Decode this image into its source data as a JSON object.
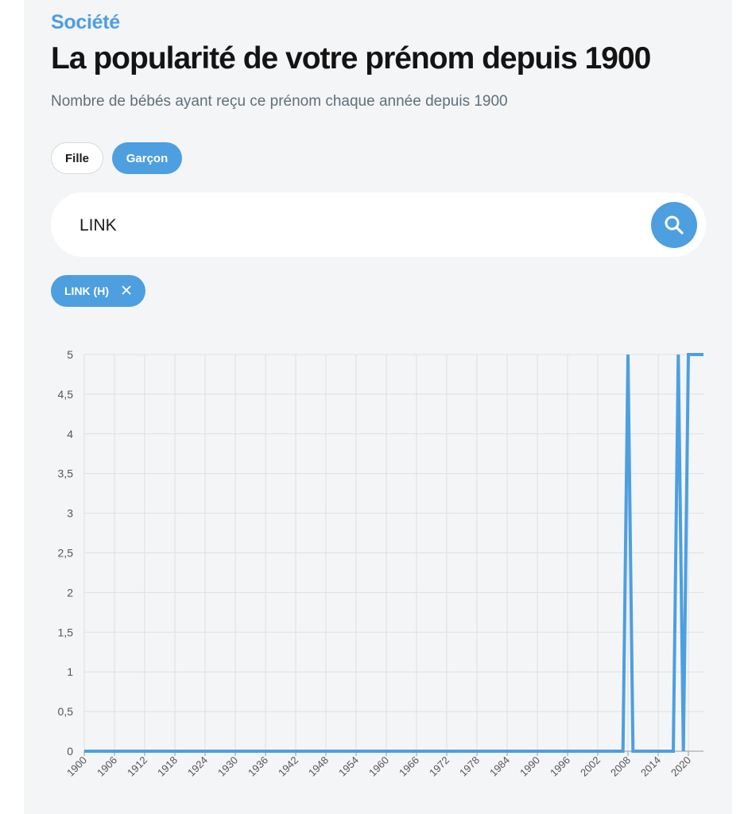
{
  "header": {
    "kicker": "Société",
    "title": "La popularité de votre prénom depuis 1900",
    "subtitle": "Nombre de bébés ayant reçu ce prénom chaque année depuis 1900"
  },
  "gender_toggle": {
    "options": [
      "Fille",
      "Garçon"
    ],
    "selected": "Garçon"
  },
  "search": {
    "value": "LINK",
    "button_icon": "search-icon"
  },
  "selected_names": [
    {
      "label": "LINK (H)",
      "remove_icon": "close-icon"
    }
  ],
  "colors": {
    "accent": "#4d9fe0",
    "grid": "#dedfe1",
    "axis_text": "#555555"
  },
  "chart_data": {
    "type": "line",
    "series": [
      {
        "x": [
          1900,
          2007,
          2008,
          2009,
          2017,
          2018,
          2019,
          2020,
          2023
        ],
        "values": [
          0,
          0,
          5,
          0,
          0,
          5,
          0,
          5,
          5
        ]
      }
    ],
    "xlim": [
      1900,
      2023
    ],
    "x_ticks": [
      "1900",
      "1906",
      "1912",
      "1918",
      "1924",
      "1930",
      "1936",
      "1942",
      "1948",
      "1954",
      "1960",
      "1966",
      "1972",
      "1978",
      "1984",
      "1990",
      "1996",
      "2002",
      "2008",
      "2014",
      "2020"
    ],
    "ylim": [
      0,
      5
    ],
    "y_ticks": [
      "0",
      "0,5",
      "1",
      "1,5",
      "2",
      "2,5",
      "3",
      "3,5",
      "4",
      "4,5",
      "5"
    ],
    "grid": true
  }
}
